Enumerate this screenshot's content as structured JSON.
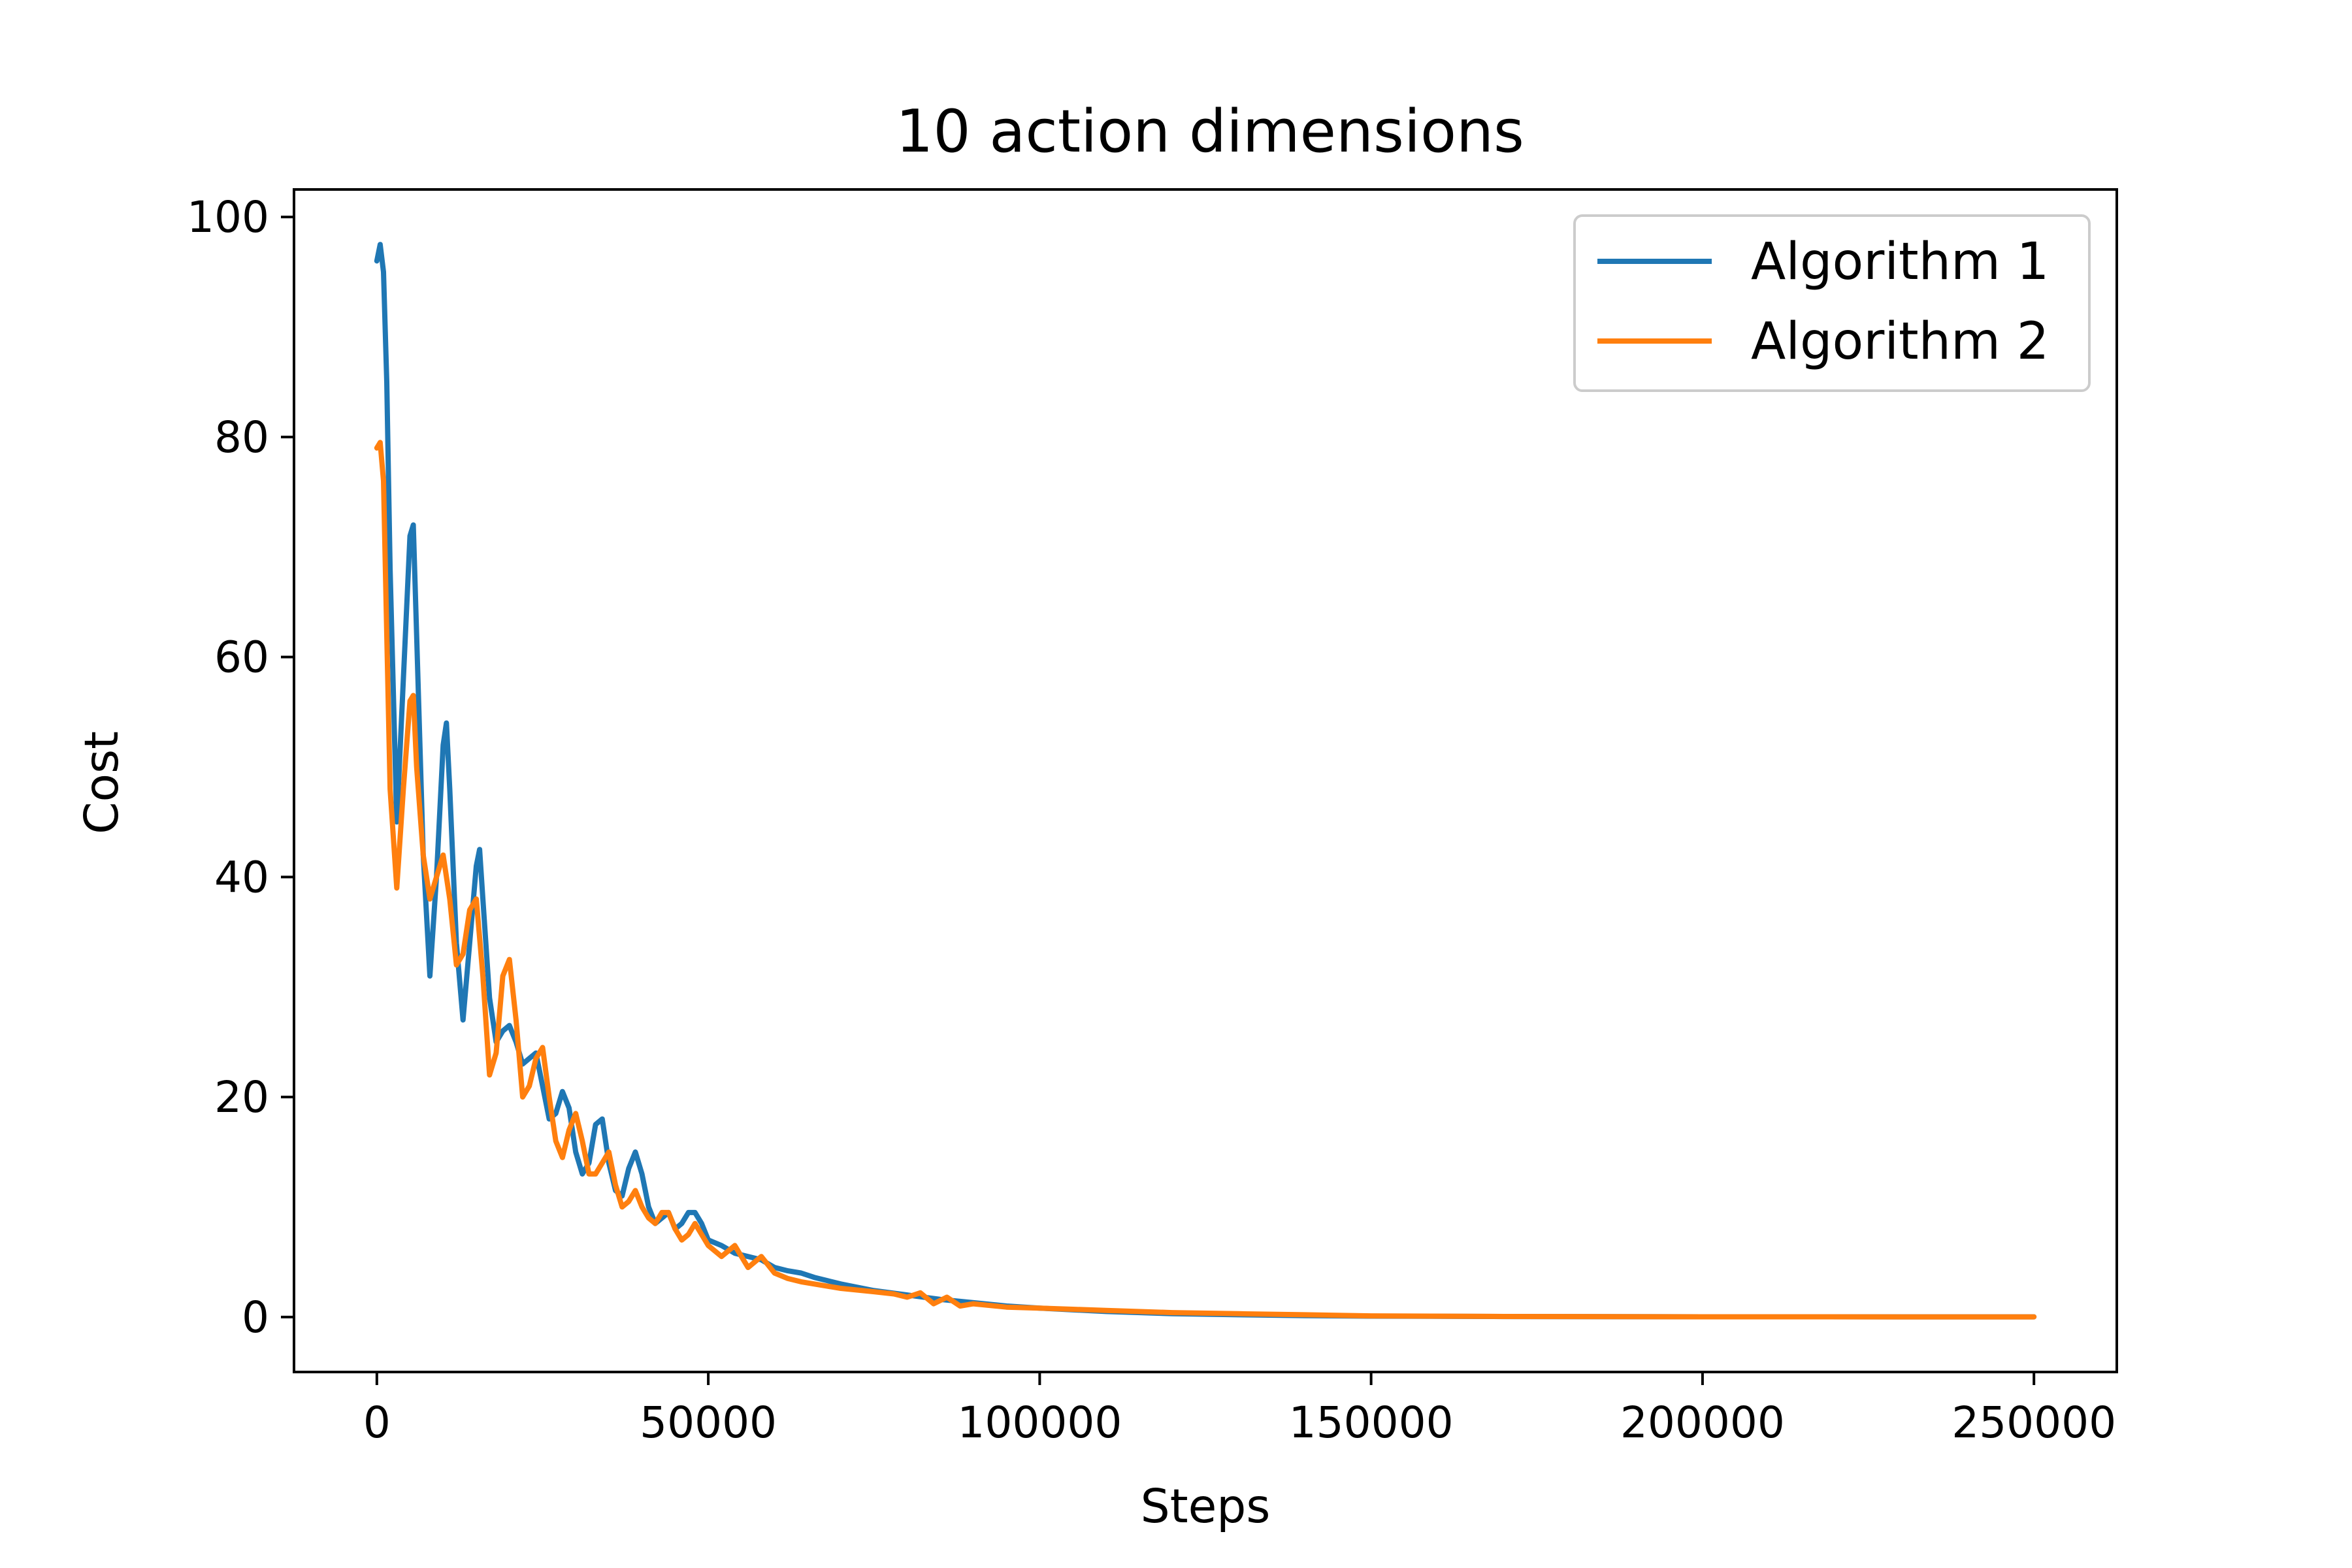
{
  "chart_data": {
    "type": "line",
    "title": "10 action dimensions",
    "xlabel": "Steps",
    "ylabel": "Cost",
    "xlim": [
      -12500,
      262500
    ],
    "ylim": [
      -5,
      102.5
    ],
    "x_ticks": [
      0,
      50000,
      100000,
      150000,
      200000,
      250000
    ],
    "x_tick_labels": [
      "0",
      "50000",
      "100000",
      "150000",
      "200000",
      "250000"
    ],
    "y_ticks": [
      0,
      20,
      40,
      60,
      80,
      100
    ],
    "y_tick_labels": [
      "0",
      "20",
      "40",
      "60",
      "80",
      "100"
    ],
    "grid": false,
    "legend": {
      "placement": "top-right"
    },
    "series": [
      {
        "name": "Algorithm 1",
        "color": "#1f77b4",
        "x": [
          0,
          500,
          1000,
          1500,
          2000,
          3000,
          4000,
          5000,
          5500,
          6000,
          7000,
          8000,
          9000,
          10000,
          10500,
          11000,
          12000,
          13000,
          14000,
          15000,
          15500,
          16000,
          17000,
          18000,
          19000,
          20000,
          21000,
          22000,
          23000,
          24000,
          25000,
          26000,
          27000,
          28000,
          29000,
          30000,
          31000,
          32000,
          33000,
          34000,
          35000,
          36000,
          37000,
          38000,
          39000,
          40000,
          41000,
          42000,
          43000,
          44000,
          45000,
          46000,
          47000,
          48000,
          49000,
          50000,
          52000,
          54000,
          56000,
          58000,
          60000,
          62000,
          64000,
          66000,
          68000,
          70000,
          75000,
          80000,
          85000,
          90000,
          95000,
          100000,
          110000,
          120000,
          130000,
          140000,
          150000,
          170000,
          200000,
          230000,
          250000
        ],
        "y": [
          96,
          97.5,
          95,
          85,
          68,
          45,
          58,
          71,
          72,
          62,
          42,
          31,
          40,
          52,
          54,
          48,
          34,
          27,
          34,
          41,
          42.5,
          38,
          29,
          25,
          26,
          26.5,
          25,
          23,
          23.5,
          24,
          21,
          18,
          18.5,
          20.5,
          19,
          15,
          13,
          14,
          17.5,
          18,
          14,
          11.5,
          11,
          13.5,
          15,
          13,
          10,
          8.5,
          9,
          9.5,
          8,
          8.5,
          9.5,
          9.5,
          8.5,
          7,
          6.5,
          5.8,
          5.5,
          5.2,
          4.5,
          4.2,
          4.0,
          3.6,
          3.3,
          3.0,
          2.4,
          2.0,
          1.6,
          1.3,
          1.0,
          0.8,
          0.5,
          0.3,
          0.2,
          0.12,
          0.08,
          0.04,
          0.02,
          0.01,
          0.01
        ]
      },
      {
        "name": "Algorithm 2",
        "color": "#ff7f0e",
        "x": [
          0,
          500,
          1000,
          1500,
          2000,
          3000,
          4000,
          5000,
          5500,
          6000,
          7000,
          8000,
          9000,
          10000,
          11000,
          12000,
          13000,
          14000,
          15000,
          16000,
          17000,
          18000,
          19000,
          20000,
          21000,
          22000,
          23000,
          24000,
          25000,
          26000,
          27000,
          28000,
          29000,
          30000,
          31000,
          32000,
          33000,
          34000,
          35000,
          36000,
          37000,
          38000,
          39000,
          40000,
          41000,
          42000,
          43000,
          44000,
          45000,
          46000,
          47000,
          48000,
          49000,
          50000,
          52000,
          54000,
          56000,
          58000,
          60000,
          62000,
          64000,
          66000,
          68000,
          70000,
          75000,
          78000,
          80000,
          82000,
          84000,
          86000,
          88000,
          90000,
          95000,
          100000,
          105000,
          110000,
          120000,
          130000,
          140000,
          150000,
          170000,
          200000,
          230000,
          250000
        ],
        "y": [
          79,
          79.5,
          76,
          62,
          48,
          39,
          48,
          56,
          56.5,
          50,
          42,
          38,
          40,
          42,
          38,
          32,
          33,
          37,
          38,
          31,
          22,
          24,
          31,
          32.5,
          27,
          20,
          21,
          23.5,
          24.5,
          20,
          16,
          14.5,
          17,
          18.5,
          16,
          13,
          13,
          14,
          15,
          12,
          10,
          10.5,
          11.5,
          10,
          9,
          8.5,
          9.5,
          9.5,
          8,
          7,
          7.5,
          8.5,
          7.5,
          6.5,
          5.5,
          6.5,
          4.5,
          5.5,
          4.0,
          3.5,
          3.2,
          3.0,
          2.8,
          2.6,
          2.3,
          2.1,
          1.8,
          2.2,
          1.2,
          1.8,
          1.0,
          1.2,
          0.9,
          0.8,
          0.7,
          0.6,
          0.4,
          0.3,
          0.2,
          0.1,
          0.05,
          0.02,
          0.01,
          0.01
        ]
      }
    ]
  }
}
